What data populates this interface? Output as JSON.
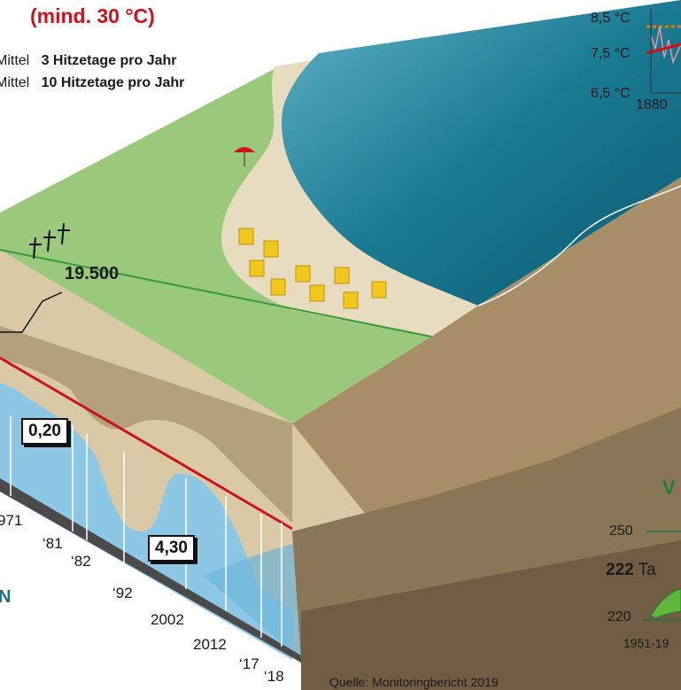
{
  "title_threshold": "(mind. 30 °C)",
  "heat_rows": [
    {
      "prefix": "Mittel",
      "value": "3 Hitzetage pro Jahr"
    },
    {
      "prefix": "Mittel",
      "value": "10 Hitzetage pro Jahr"
    }
  ],
  "temp_chart": {
    "ticks": [
      "8,5 °C",
      "7,5 °C",
      "6,5 °C"
    ],
    "x_start": "1880"
  },
  "callouts": {
    "count": "19.500",
    "low": "0,20",
    "high": "4,30"
  },
  "years": [
    "971",
    "‘81",
    "‘82",
    "‘92",
    "2002",
    "2012",
    "‘17",
    "‘18"
  ],
  "left_fragment": "N",
  "vegetation": {
    "heading": "V",
    "tick_250": "250",
    "days_value": "222",
    "days_label": "Ta",
    "tick_220": "220",
    "period": "1951-19"
  },
  "source": "Quelle: Monitoringbericht 2019",
  "colors": {
    "sea_deep": "#0c5f78",
    "sea_light": "#3d9bb3",
    "sand": "#e8dcc0",
    "grass": "#9bc97c",
    "soil": "#b5a07e",
    "soil_dark": "#8b7557",
    "water": "#8cc8e6",
    "red_line": "#d0111b"
  }
}
